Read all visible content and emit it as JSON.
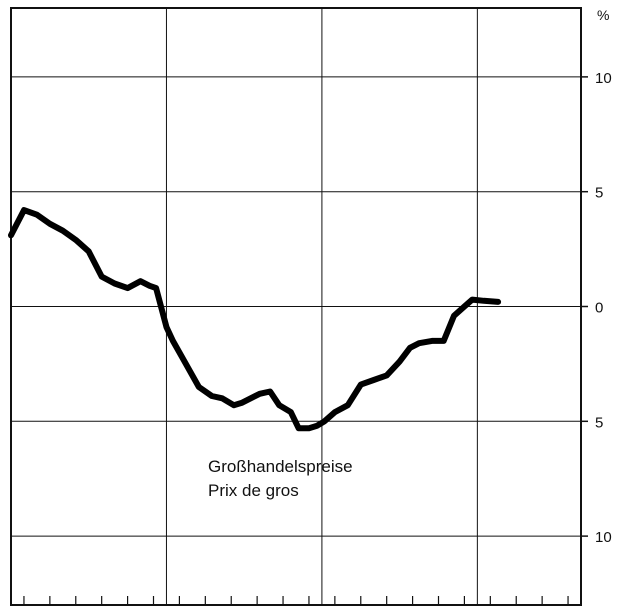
{
  "chart_data": {
    "type": "line",
    "title": "",
    "xlabel": "",
    "ylabel": "%",
    "ylim": [
      -13,
      13
    ],
    "x_range": [
      0,
      44
    ],
    "grid": true,
    "y_ticks": [
      {
        "value": 10,
        "label": "10"
      },
      {
        "value": 5,
        "label": "5"
      },
      {
        "value": 0,
        "label": "0"
      },
      {
        "value": -5,
        "label": "5"
      },
      {
        "value": -10,
        "label": "10"
      }
    ],
    "x_minor_ticks": [
      1,
      3,
      5,
      7,
      9,
      11,
      13,
      15,
      17,
      19,
      21,
      23,
      25,
      27,
      29,
      31,
      33,
      35,
      37,
      39,
      41,
      43
    ],
    "x_grid": [
      12,
      24,
      36
    ],
    "annotation": [
      "Großhandelspreise",
      "Prix de gros"
    ],
    "series": [
      {
        "name": "Großhandelspreise",
        "x": [
          0,
          1,
          2,
          3,
          4,
          5,
          6,
          7,
          8,
          9,
          10,
          10.7,
          11.2,
          12,
          12.5,
          13.3,
          14.5,
          15.5,
          16.3,
          17.2,
          17.8,
          18.5,
          19.2,
          20,
          20.7,
          21.6,
          22.2,
          23,
          23.6,
          24.2,
          25,
          26,
          27,
          28,
          29,
          30,
          30.8,
          31.5,
          32.5,
          33.4,
          34.2,
          35,
          35.6,
          36.5,
          37.6
        ],
        "y": [
          3.1,
          4.2,
          4.0,
          3.6,
          3.3,
          2.9,
          2.4,
          1.3,
          1.0,
          0.8,
          1.1,
          0.9,
          0.8,
          -0.9,
          -1.5,
          -2.3,
          -3.5,
          -3.9,
          -4.0,
          -4.3,
          -4.2,
          -4.0,
          -3.8,
          -3.7,
          -4.3,
          -4.6,
          -5.3,
          -5.3,
          -5.2,
          -5.0,
          -4.6,
          -4.3,
          -3.4,
          -3.2,
          -3.0,
          -2.4,
          -1.8,
          -1.6,
          -1.5,
          -1.5,
          -0.4,
          0.0,
          0.3,
          0.25,
          0.2
        ]
      }
    ]
  }
}
